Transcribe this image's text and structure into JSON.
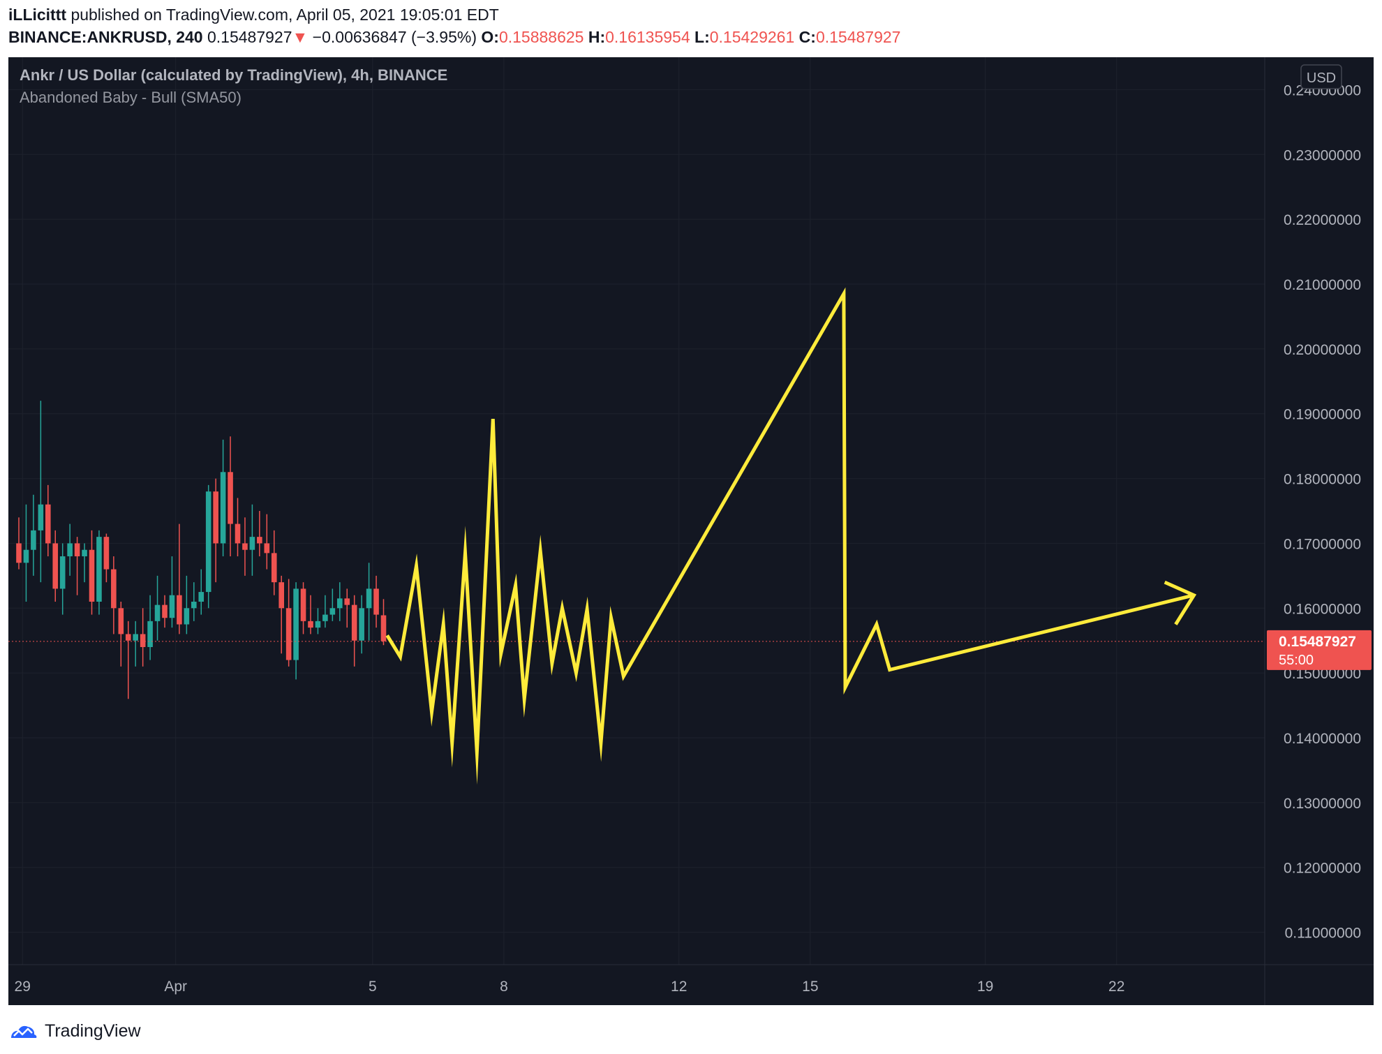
{
  "header": {
    "author": "iLLicittt",
    "published_text": "published on TradingView.com, April 05, 2021 19:05:01 EDT",
    "symbol": "BINANCE:ANKRUSD, 240",
    "last": "0.15487927",
    "change": "−0.00636847 (−3.95%)",
    "o_label": "O:",
    "o_value": "0.15888625",
    "h_label": "H:",
    "h_value": "0.16135954",
    "l_label": "L:",
    "l_value": "0.15429261",
    "c_label": "C:",
    "c_value": "0.15487927"
  },
  "legend": {
    "title": "Ankr / US Dollar (calculated by TradingView), 4h, BINANCE",
    "indicator": "Abandoned Baby - Bull (SMA50)"
  },
  "currency_button": "USD",
  "price_tag": {
    "value": "0.15487927",
    "countdown": "55:00"
  },
  "footer": {
    "brand": "TradingView"
  },
  "colors": {
    "background": "#131722",
    "up": "#26a69a",
    "down": "#ef5350",
    "drawing": "#ffeb3b",
    "grid": "#1e222d"
  },
  "chart_data": {
    "type": "candlestick",
    "title": "Ankr / US Dollar (calculated by TradingView), 4h, BINANCE",
    "ylim": [
      0.105,
      0.245
    ],
    "y_ticks": [
      "0.24000000",
      "0.23000000",
      "0.22000000",
      "0.21000000",
      "0.20000000",
      "0.19000000",
      "0.18000000",
      "0.17000000",
      "0.16000000",
      "0.15000000",
      "0.14000000",
      "0.13000000",
      "0.12000000",
      "0.11000000"
    ],
    "x_ticks": [
      {
        "label": "29",
        "x": 0.5
      },
      {
        "label": "Apr",
        "x": 21.5
      },
      {
        "label": "5",
        "x": 48.5
      },
      {
        "label": "8",
        "x": 66.5
      },
      {
        "label": "12",
        "x": 90.5
      },
      {
        "label": "15",
        "x": 108.5
      },
      {
        "label": "19",
        "x": 132.5
      },
      {
        "label": "22",
        "x": 150.5
      }
    ],
    "current_price": 0.15487927,
    "candles": [
      {
        "o": 0.17,
        "h": 0.174,
        "l": 0.166,
        "c": 0.167
      },
      {
        "o": 0.167,
        "h": 0.176,
        "l": 0.161,
        "c": 0.169
      },
      {
        "o": 0.169,
        "h": 0.1775,
        "l": 0.165,
        "c": 0.172
      },
      {
        "o": 0.172,
        "h": 0.192,
        "l": 0.164,
        "c": 0.176
      },
      {
        "o": 0.176,
        "h": 0.179,
        "l": 0.168,
        "c": 0.17
      },
      {
        "o": 0.17,
        "h": 0.172,
        "l": 0.161,
        "c": 0.163
      },
      {
        "o": 0.163,
        "h": 0.17,
        "l": 0.159,
        "c": 0.168
      },
      {
        "o": 0.168,
        "h": 0.173,
        "l": 0.165,
        "c": 0.17
      },
      {
        "o": 0.17,
        "h": 0.171,
        "l": 0.162,
        "c": 0.168
      },
      {
        "o": 0.168,
        "h": 0.17,
        "l": 0.164,
        "c": 0.169
      },
      {
        "o": 0.169,
        "h": 0.172,
        "l": 0.159,
        "c": 0.161
      },
      {
        "o": 0.161,
        "h": 0.172,
        "l": 0.159,
        "c": 0.171
      },
      {
        "o": 0.171,
        "h": 0.1715,
        "l": 0.164,
        "c": 0.166
      },
      {
        "o": 0.166,
        "h": 0.168,
        "l": 0.156,
        "c": 0.16
      },
      {
        "o": 0.16,
        "h": 0.161,
        "l": 0.151,
        "c": 0.156
      },
      {
        "o": 0.156,
        "h": 0.158,
        "l": 0.146,
        "c": 0.155
      },
      {
        "o": 0.155,
        "h": 0.158,
        "l": 0.151,
        "c": 0.156
      },
      {
        "o": 0.156,
        "h": 0.16,
        "l": 0.151,
        "c": 0.154
      },
      {
        "o": 0.154,
        "h": 0.162,
        "l": 0.152,
        "c": 0.158
      },
      {
        "o": 0.158,
        "h": 0.165,
        "l": 0.155,
        "c": 0.1605
      },
      {
        "o": 0.1605,
        "h": 0.162,
        "l": 0.157,
        "c": 0.1585
      },
      {
        "o": 0.1585,
        "h": 0.168,
        "l": 0.157,
        "c": 0.162
      },
      {
        "o": 0.162,
        "h": 0.173,
        "l": 0.156,
        "c": 0.1575
      },
      {
        "o": 0.1575,
        "h": 0.165,
        "l": 0.156,
        "c": 0.16
      },
      {
        "o": 0.16,
        "h": 0.164,
        "l": 0.158,
        "c": 0.161
      },
      {
        "o": 0.161,
        "h": 0.166,
        "l": 0.159,
        "c": 0.1625
      },
      {
        "o": 0.1625,
        "h": 0.179,
        "l": 0.16,
        "c": 0.178
      },
      {
        "o": 0.178,
        "h": 0.18,
        "l": 0.164,
        "c": 0.17
      },
      {
        "o": 0.17,
        "h": 0.186,
        "l": 0.168,
        "c": 0.181
      },
      {
        "o": 0.181,
        "h": 0.1865,
        "l": 0.168,
        "c": 0.173
      },
      {
        "o": 0.173,
        "h": 0.177,
        "l": 0.168,
        "c": 0.17
      },
      {
        "o": 0.17,
        "h": 0.174,
        "l": 0.165,
        "c": 0.169
      },
      {
        "o": 0.169,
        "h": 0.176,
        "l": 0.165,
        "c": 0.171
      },
      {
        "o": 0.171,
        "h": 0.175,
        "l": 0.168,
        "c": 0.17
      },
      {
        "o": 0.17,
        "h": 0.1745,
        "l": 0.166,
        "c": 0.1685
      },
      {
        "o": 0.1685,
        "h": 0.172,
        "l": 0.162,
        "c": 0.164
      },
      {
        "o": 0.164,
        "h": 0.165,
        "l": 0.153,
        "c": 0.16
      },
      {
        "o": 0.16,
        "h": 0.1645,
        "l": 0.151,
        "c": 0.152
      },
      {
        "o": 0.152,
        "h": 0.164,
        "l": 0.149,
        "c": 0.163
      },
      {
        "o": 0.163,
        "h": 0.164,
        "l": 0.156,
        "c": 0.158
      },
      {
        "o": 0.158,
        "h": 0.162,
        "l": 0.156,
        "c": 0.157
      },
      {
        "o": 0.157,
        "h": 0.16,
        "l": 0.156,
        "c": 0.158
      },
      {
        "o": 0.158,
        "h": 0.162,
        "l": 0.157,
        "c": 0.159
      },
      {
        "o": 0.159,
        "h": 0.163,
        "l": 0.158,
        "c": 0.16
      },
      {
        "o": 0.16,
        "h": 0.164,
        "l": 0.158,
        "c": 0.1615
      },
      {
        "o": 0.1615,
        "h": 0.163,
        "l": 0.157,
        "c": 0.1605
      },
      {
        "o": 0.1605,
        "h": 0.162,
        "l": 0.151,
        "c": 0.155
      },
      {
        "o": 0.155,
        "h": 0.162,
        "l": 0.153,
        "c": 0.16
      },
      {
        "o": 0.16,
        "h": 0.167,
        "l": 0.155,
        "c": 0.163
      },
      {
        "o": 0.163,
        "h": 0.165,
        "l": 0.157,
        "c": 0.159
      },
      {
        "o": 0.1589,
        "h": 0.1614,
        "l": 0.1543,
        "c": 0.1549
      }
    ],
    "drawing": {
      "type": "path-with-arrow",
      "color": "#ffeb3b",
      "points": [
        [
          50.5,
          0.1558
        ],
        [
          52.3,
          0.1525
        ],
        [
          54.5,
          0.1665
        ],
        [
          56.6,
          0.144
        ],
        [
          58.2,
          0.1575
        ],
        [
          59.4,
          0.1392
        ],
        [
          61.2,
          0.1685
        ],
        [
          62.8,
          0.1378
        ],
        [
          65.0,
          0.1892
        ],
        [
          66.1,
          0.153
        ],
        [
          68.1,
          0.1635
        ],
        [
          69.3,
          0.146
        ],
        [
          71.5,
          0.1688
        ],
        [
          73.1,
          0.1515
        ],
        [
          74.5,
          0.16
        ],
        [
          76.4,
          0.15
        ],
        [
          77.9,
          0.1598
        ],
        [
          79.8,
          0.1392
        ],
        [
          81.2,
          0.1585
        ],
        [
          82.9,
          0.1495
        ],
        [
          113.1,
          0.2085
        ],
        [
          113.3,
          0.1478
        ],
        [
          117.6,
          0.1575
        ],
        [
          119.4,
          0.1505
        ],
        [
          161.1,
          0.162
        ]
      ],
      "arrow_head": [
        [
          157.1,
          0.164
        ],
        [
          161.1,
          0.162
        ],
        [
          158.6,
          0.1575
        ]
      ]
    }
  }
}
